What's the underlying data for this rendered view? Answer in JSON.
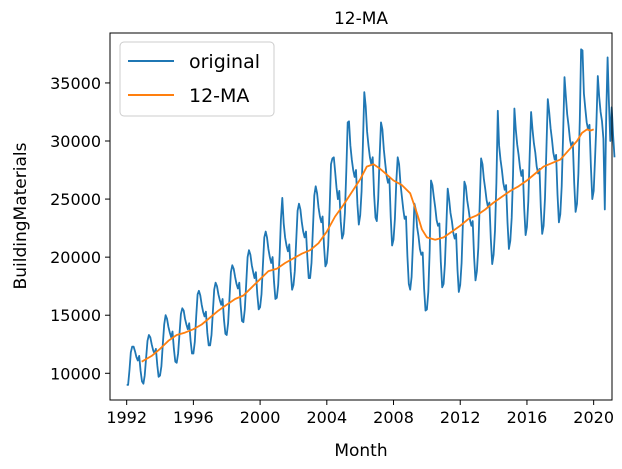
{
  "chart_data": {
    "type": "line",
    "title": "12-MA",
    "xlabel": "Month",
    "ylabel": "BuildingMaterials",
    "xlim": [
      1991.0,
      2021.1
    ],
    "ylim": [
      7700,
      39300
    ],
    "x_ticks": [
      1992,
      1996,
      2000,
      2004,
      2008,
      2012,
      2016,
      2020
    ],
    "x_tick_labels": [
      "1992",
      "1996",
      "2000",
      "2004",
      "2008",
      "2012",
      "2016",
      "2020"
    ],
    "y_ticks": [
      10000,
      15000,
      20000,
      25000,
      30000,
      35000
    ],
    "y_tick_labels": [
      "10000",
      "15000",
      "20000",
      "25000",
      "30000",
      "35000"
    ],
    "grid": false,
    "legend_position": "top-left",
    "series": [
      {
        "name": "original",
        "color": "#1f77b4",
        "start": 1992.0,
        "step": 0.08333333,
        "values": [
          9000,
          9000,
          10300,
          11800,
          12300,
          12300,
          11900,
          11400,
          11100,
          11500,
          10200,
          9300,
          9100,
          9800,
          11300,
          12800,
          13300,
          13100,
          12500,
          12000,
          11700,
          12100,
          10700,
          9700,
          9800,
          10600,
          12500,
          14200,
          15000,
          14700,
          14000,
          13500,
          13100,
          13600,
          12100,
          11000,
          10900,
          11700,
          13400,
          15100,
          15600,
          15400,
          14700,
          14200,
          13800,
          14300,
          12800,
          11700,
          11700,
          12700,
          14900,
          16800,
          17100,
          16700,
          15900,
          15300,
          14900,
          15300,
          13500,
          12400,
          12400,
          13300,
          15200,
          17200,
          17800,
          17500,
          16800,
          16300,
          15900,
          16400,
          14600,
          13400,
          13300,
          14300,
          16500,
          18700,
          19300,
          19000,
          18300,
          17700,
          17300,
          17800,
          15900,
          14500,
          14400,
          15500,
          17700,
          20000,
          20600,
          20200,
          19300,
          18700,
          18200,
          18700,
          16800,
          15500,
          15700,
          16800,
          19300,
          21700,
          22200,
          21700,
          20700,
          20000,
          19500,
          20000,
          17900,
          16400,
          16500,
          17600,
          20100,
          23200,
          25100,
          22900,
          21700,
          21000,
          20500,
          21100,
          18800,
          17200,
          17600,
          18800,
          21400,
          24000,
          24600,
          24100,
          23000,
          22200,
          21700,
          22200,
          19900,
          18200,
          18200,
          19500,
          22400,
          25300,
          26100,
          25500,
          24300,
          23500,
          23000,
          23500,
          21000,
          19200,
          19500,
          21000,
          24100,
          28000,
          28500,
          28600,
          27400,
          26000,
          25000,
          25700,
          23100,
          21600,
          22000,
          23800,
          27400,
          31600,
          31700,
          29600,
          28400,
          27500,
          26900,
          27500,
          24600,
          22800,
          23600,
          25700,
          29700,
          34200,
          33000,
          30800,
          29600,
          28600,
          28000,
          28600,
          25400,
          23400,
          23100,
          25000,
          28600,
          31600,
          31000,
          29300,
          28100,
          27000,
          26400,
          26800,
          23500,
          21000,
          21500,
          23300,
          26500,
          28600,
          28000,
          26300,
          25200,
          24100,
          23300,
          23500,
          20100,
          17700,
          17200,
          18300,
          21300,
          24600,
          24100,
          22600,
          21800,
          20700,
          20200,
          20400,
          17300,
          15400,
          15500,
          17000,
          20600,
          26600,
          26200,
          25200,
          24300,
          23200,
          22700,
          22900,
          19600,
          17400,
          17700,
          19400,
          22600,
          25900,
          25000,
          23800,
          23100,
          22100,
          21600,
          22000,
          18900,
          17000,
          17600,
          19500,
          23200,
          26500,
          26100,
          24900,
          24100,
          23200,
          22700,
          23100,
          20000,
          18000,
          18800,
          20800,
          24600,
          28500,
          28000,
          26700,
          25900,
          24900,
          24300,
          24700,
          21600,
          19400,
          20200,
          22300,
          26400,
          32600,
          29600,
          28400,
          27500,
          26400,
          25800,
          26200,
          23000,
          20700,
          21400,
          23400,
          27000,
          32800,
          31000,
          29700,
          28800,
          27700,
          27000,
          27500,
          24200,
          21900,
          22600,
          24800,
          28800,
          32500,
          31000,
          29800,
          29000,
          27800,
          27200,
          27600,
          24300,
          22000,
          22700,
          25100,
          29300,
          33600,
          32500,
          31100,
          30100,
          29000,
          28400,
          28800,
          25400,
          23000,
          23700,
          26100,
          30500,
          35500,
          33800,
          32300,
          31300,
          30100,
          29500,
          29900,
          26400,
          23900,
          24600,
          27200,
          31800,
          37900,
          37800,
          34100,
          32800,
          31600,
          31000,
          31400,
          27800,
          25000,
          25700,
          28400,
          31500,
          35600,
          33800,
          32500,
          31700,
          30200,
          24100,
          32100,
          37200,
          33400,
          30000,
          32900,
          30500,
          28600
        ]
      },
      {
        "name": "12-MA",
        "color": "#ff7f0e",
        "points": [
          [
            1992.9,
            11000
          ],
          [
            1993.5,
            11500
          ],
          [
            1994.0,
            12100
          ],
          [
            1994.5,
            12800
          ],
          [
            1995.0,
            13300
          ],
          [
            1995.5,
            13500
          ],
          [
            1996.0,
            13800
          ],
          [
            1996.5,
            14200
          ],
          [
            1997.0,
            14800
          ],
          [
            1997.5,
            15400
          ],
          [
            1998.0,
            15900
          ],
          [
            1998.5,
            16400
          ],
          [
            1999.0,
            16700
          ],
          [
            1999.5,
            17400
          ],
          [
            2000.0,
            18100
          ],
          [
            2000.5,
            18800
          ],
          [
            2001.0,
            19000
          ],
          [
            2001.5,
            19500
          ],
          [
            2002.0,
            19900
          ],
          [
            2002.5,
            20300
          ],
          [
            2003.0,
            20600
          ],
          [
            2003.5,
            21200
          ],
          [
            2004.0,
            22200
          ],
          [
            2004.5,
            23500
          ],
          [
            2005.0,
            24500
          ],
          [
            2005.5,
            25600
          ],
          [
            2006.0,
            26700
          ],
          [
            2006.4,
            27800
          ],
          [
            2006.8,
            28000
          ],
          [
            2007.2,
            27600
          ],
          [
            2007.6,
            27100
          ],
          [
            2008.0,
            26600
          ],
          [
            2008.5,
            26200
          ],
          [
            2009.0,
            25500
          ],
          [
            2009.4,
            23800
          ],
          [
            2009.7,
            22400
          ],
          [
            2010.0,
            21700
          ],
          [
            2010.5,
            21500
          ],
          [
            2011.0,
            21700
          ],
          [
            2011.5,
            22200
          ],
          [
            2012.0,
            22700
          ],
          [
            2012.5,
            23300
          ],
          [
            2013.0,
            23600
          ],
          [
            2013.5,
            24100
          ],
          [
            2014.0,
            24700
          ],
          [
            2014.5,
            25200
          ],
          [
            2015.0,
            25700
          ],
          [
            2015.5,
            26100
          ],
          [
            2016.0,
            26600
          ],
          [
            2016.5,
            27200
          ],
          [
            2017.0,
            27800
          ],
          [
            2017.5,
            28100
          ],
          [
            2018.0,
            28400
          ],
          [
            2018.5,
            29200
          ],
          [
            2019.0,
            30000
          ],
          [
            2019.3,
            30700
          ],
          [
            2019.6,
            31000
          ],
          [
            2019.8,
            30900
          ],
          [
            2020.0,
            31000
          ]
        ]
      }
    ]
  }
}
